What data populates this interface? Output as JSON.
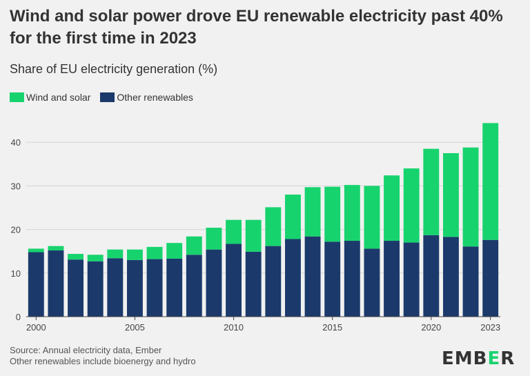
{
  "title": "Wind and solar power drove EU renewable electricity past 40% for the first time in 2023",
  "subtitle": "Share of EU electricity generation (%)",
  "legend": [
    {
      "label": "Wind and solar",
      "color": "#17d36e"
    },
    {
      "label": "Other renewables",
      "color": "#1b3a6b"
    }
  ],
  "footer": {
    "source": "Source: Annual electricity data, Ember",
    "note": "Other renewables include bioenergy and hydro"
  },
  "logo": {
    "prefix": "EMB",
    "accent": "E",
    "suffix": "R"
  },
  "chart_data": {
    "type": "bar",
    "stacked": true,
    "categories": [
      "2000",
      "2001",
      "2002",
      "2003",
      "2004",
      "2005",
      "2006",
      "2007",
      "2008",
      "2009",
      "2010",
      "2011",
      "2012",
      "2013",
      "2014",
      "2015",
      "2016",
      "2017",
      "2018",
      "2019",
      "2020",
      "2021",
      "2022",
      "2023"
    ],
    "x_tick_labels": [
      "2000",
      "2005",
      "2010",
      "2015",
      "2020",
      "2023"
    ],
    "series": [
      {
        "name": "Other renewables",
        "color": "#1b3a6b",
        "values": [
          14.8,
          15.2,
          13.1,
          12.7,
          13.4,
          13.0,
          13.2,
          13.3,
          14.2,
          15.4,
          16.7,
          14.9,
          16.2,
          17.8,
          18.4,
          17.2,
          17.4,
          15.6,
          17.4,
          17.0,
          18.7,
          18.3,
          16.1,
          17.6
        ]
      },
      {
        "name": "Wind and solar",
        "color": "#17d36e",
        "values": [
          0.8,
          1.0,
          1.3,
          1.5,
          2.0,
          2.4,
          2.8,
          3.6,
          4.2,
          5.0,
          5.5,
          7.3,
          8.9,
          10.2,
          11.3,
          12.6,
          12.8,
          14.4,
          15.0,
          17.0,
          19.8,
          19.2,
          22.7,
          26.8
        ]
      }
    ],
    "y_ticks": [
      0,
      10,
      20,
      30,
      40
    ],
    "ylim": [
      0,
      45
    ],
    "grid": true
  }
}
